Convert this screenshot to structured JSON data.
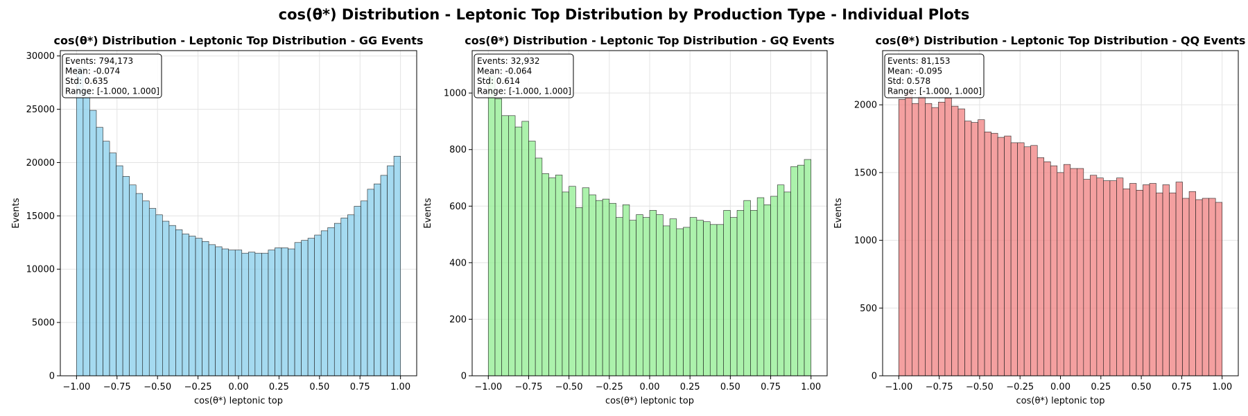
{
  "suptitle": "cos(θ*) Distribution - Leptonic Top Distribution by Production Type - Individual Plots",
  "chart_data": [
    {
      "type": "bar",
      "title": "cos(θ*) Distribution - Leptonic Top Distribution - GG Events",
      "xlabel": "cos(θ*) leptonic top",
      "ylabel": "Events",
      "xlim": [
        -1.1,
        1.1
      ],
      "ylim": [
        0,
        30500
      ],
      "xticks": [
        -1.0,
        -0.75,
        -0.5,
        -0.25,
        0.0,
        0.25,
        0.5,
        0.75,
        1.0
      ],
      "xtick_labels": [
        "−1.00",
        "−0.75",
        "−0.50",
        "−0.25",
        "0.00",
        "0.25",
        "0.50",
        "0.75",
        "1.00"
      ],
      "yticks": [
        0,
        5000,
        10000,
        15000,
        20000,
        25000,
        30000
      ],
      "ytick_labels": [
        "0",
        "5000",
        "10000",
        "15000",
        "20000",
        "25000",
        "30000"
      ],
      "grid": true,
      "color": "#87ceeb",
      "stats": [
        "Events: 794,173",
        "Mean: -0.074",
        "Std: 0.635",
        "Range: [-1.000, 1.000]"
      ],
      "bin_edges_range": [
        -1.0,
        1.0
      ],
      "values": [
        28900,
        26800,
        24900,
        23300,
        22000,
        20900,
        19700,
        18700,
        17900,
        17100,
        16400,
        15700,
        15100,
        14500,
        14100,
        13700,
        13300,
        13100,
        12900,
        12600,
        12300,
        12100,
        11900,
        11800,
        11800,
        11500,
        11600,
        11500,
        11500,
        11800,
        12000,
        12000,
        11900,
        12500,
        12700,
        12900,
        13200,
        13600,
        13900,
        14300,
        14800,
        15100,
        15900,
        16400,
        17500,
        18000,
        18800,
        19700,
        20600
      ]
    },
    {
      "type": "bar",
      "title": "cos(θ*) Distribution - Leptonic Top Distribution - GQ Events",
      "xlabel": "cos(θ*) leptonic top",
      "ylabel": "Events",
      "xlim": [
        -1.1,
        1.1
      ],
      "ylim": [
        0,
        1150
      ],
      "xticks": [
        -1.0,
        -0.75,
        -0.5,
        -0.25,
        0.0,
        0.25,
        0.5,
        0.75,
        1.0
      ],
      "xtick_labels": [
        "−1.00",
        "−0.75",
        "−0.50",
        "−0.25",
        "0.00",
        "0.25",
        "0.50",
        "0.75",
        "1.00"
      ],
      "yticks": [
        0,
        200,
        400,
        600,
        800,
        1000
      ],
      "ytick_labels": [
        "0",
        "200",
        "400",
        "600",
        "800",
        "1000"
      ],
      "grid": true,
      "color": "#90ee90",
      "stats": [
        "Events: 32,932",
        "Mean: -0.064",
        "Std: 0.614",
        "Range: [-1.000, 1.000]"
      ],
      "bin_edges_range": [
        -1.0,
        1.0
      ],
      "values": [
        1060,
        980,
        920,
        920,
        880,
        900,
        830,
        770,
        715,
        700,
        710,
        650,
        670,
        595,
        665,
        640,
        620,
        625,
        610,
        560,
        605,
        550,
        570,
        560,
        585,
        570,
        530,
        555,
        520,
        525,
        560,
        550,
        545,
        535,
        535,
        585,
        560,
        585,
        620,
        585,
        630,
        605,
        635,
        675,
        650,
        740,
        745,
        765
      ]
    },
    {
      "type": "bar",
      "title": "cos(θ*) Distribution - Leptonic Top Distribution - QQ Events",
      "xlabel": "cos(θ*) leptonic top",
      "ylabel": "Events",
      "xlim": [
        -1.1,
        1.1
      ],
      "ylim": [
        0,
        2400
      ],
      "xticks": [
        -1.0,
        -0.75,
        -0.5,
        -0.25,
        0.0,
        0.25,
        0.5,
        0.75,
        1.0
      ],
      "xtick_labels": [
        "−1.00",
        "−0.75",
        "−0.50",
        "−0.25",
        "0.00",
        "0.25",
        "0.50",
        "0.75",
        "1.00"
      ],
      "yticks": [
        0,
        500,
        1000,
        1500,
        2000
      ],
      "ytick_labels": [
        "0",
        "500",
        "1000",
        "1500",
        "2000"
      ],
      "grid": true,
      "color": "#f08080",
      "stats": [
        "Events: 81,153",
        "Mean: -0.095",
        "Std: 0.578",
        "Range: [-1.000, 1.000]"
      ],
      "bin_edges_range": [
        -1.0,
        1.0
      ],
      "values": [
        2040,
        2090,
        2010,
        2060,
        2010,
        1980,
        2020,
        2050,
        1990,
        1970,
        1880,
        1870,
        1890,
        1800,
        1790,
        1760,
        1770,
        1720,
        1720,
        1690,
        1700,
        1610,
        1580,
        1550,
        1500,
        1560,
        1530,
        1530,
        1450,
        1480,
        1460,
        1440,
        1440,
        1460,
        1380,
        1420,
        1370,
        1410,
        1420,
        1350,
        1410,
        1350,
        1430,
        1310,
        1360,
        1300,
        1310,
        1310,
        1280
      ]
    }
  ]
}
